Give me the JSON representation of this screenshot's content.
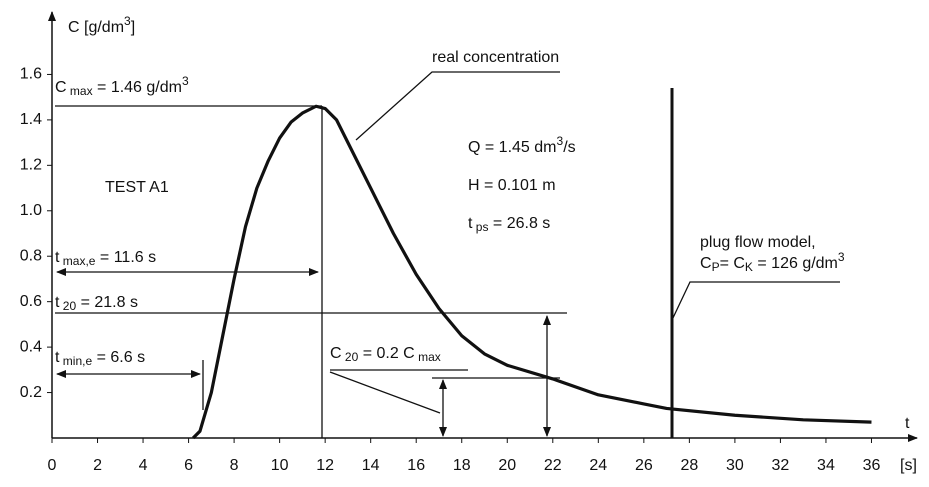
{
  "chart_data": {
    "type": "line",
    "x_label": "t",
    "x_unit": "[s]",
    "xlim": [
      0,
      38
    ],
    "xticks": [
      0,
      2,
      4,
      6,
      8,
      10,
      12,
      14,
      16,
      18,
      20,
      22,
      24,
      26,
      28,
      30,
      32,
      34,
      36
    ],
    "ylim": [
      0,
      1.8
    ],
    "yticks": [
      0.2,
      0.4,
      0.6,
      0.8,
      {
        "value": 1,
        "label": "1.0"
      },
      1.2,
      1.4,
      1.6
    ],
    "series": [
      {
        "name": "real concentration",
        "color": "#111111",
        "x": [
          6.2,
          6.5,
          7,
          7.5,
          8,
          8.5,
          9,
          9.5,
          10,
          10.5,
          11,
          11.6,
          12,
          12.5,
          13,
          14,
          15,
          16,
          17,
          18,
          19,
          20,
          22,
          24,
          26,
          27,
          30,
          33,
          36
        ],
        "values": [
          0,
          0.03,
          0.2,
          0.45,
          0.7,
          0.93,
          1.1,
          1.22,
          1.32,
          1.39,
          1.43,
          1.46,
          1.45,
          1.4,
          1.3,
          1.1,
          0.9,
          0.72,
          0.57,
          0.45,
          0.37,
          0.32,
          0.26,
          0.19,
          0.15,
          0.13,
          0.1,
          0.08,
          0.07
        ]
      }
    ],
    "annotations": [
      {
        "parts": [
          {
            "t": "C [g/dm"
          },
          {
            "t": "3",
            "sup": true
          },
          {
            "t": "]"
          }
        ]
      },
      {
        "parts": [
          {
            "t": "C"
          },
          {
            "t": " max",
            "sub": true
          },
          {
            "t": " = 1.46 g/dm"
          },
          {
            "t": "3",
            "sup": true
          }
        ]
      },
      {
        "parts": [
          {
            "t": "real concentration"
          }
        ]
      },
      {
        "parts": [
          {
            "t": "TEST  A1"
          }
        ]
      },
      {
        "parts": [
          {
            "t": "Q = 1.45 dm"
          },
          {
            "t": "3",
            "sup": true
          },
          {
            "t": "/s"
          }
        ]
      },
      {
        "parts": [
          {
            "t": "H = 0.101 m"
          }
        ]
      },
      {
        "parts": [
          {
            "t": "t"
          },
          {
            "t": " ps",
            "sub": true
          },
          {
            "t": " = 26.8 s"
          }
        ]
      },
      {
        "parts": [
          {
            "t": "t"
          },
          {
            "t": " max,e",
            "sub": true
          },
          {
            "t": " = 11.6 s"
          }
        ]
      },
      {
        "parts": [
          {
            "t": "t"
          },
          {
            "t": " 20",
            "sub": true
          },
          {
            "t": " = 21.8 s"
          }
        ]
      },
      {
        "parts": [
          {
            "t": "t"
          },
          {
            "t": " min,e",
            "sub": true
          },
          {
            "t": " = 6.6 s"
          }
        ]
      },
      {
        "parts": [
          {
            "t": "C"
          },
          {
            "t": " 20",
            "sub": true
          },
          {
            "t": " = 0.2 C"
          },
          {
            "t": " max",
            "sub": true
          }
        ]
      },
      {
        "parts": [
          {
            "t": "plug flow model,"
          }
        ]
      },
      {
        "parts": [
          {
            "t": "C"
          },
          {
            "t": "P",
            "sub": true
          },
          {
            "t": "= C"
          },
          {
            "t": "K",
            "sub": true
          },
          {
            "t": " = 126 g/dm"
          },
          {
            "t": "3",
            "sup": true
          }
        ]
      }
    ]
  }
}
